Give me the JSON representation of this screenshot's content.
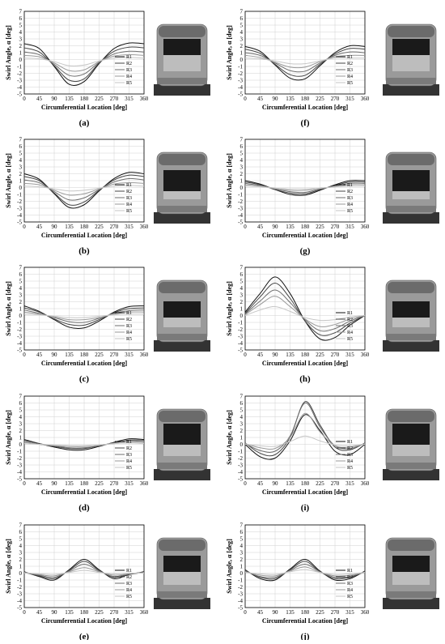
{
  "figure": {
    "y_axis_label": "Swirl Angle, α [deg]",
    "x_axis_label": "Circumferential Location [deg]",
    "legend_labels": [
      "R1",
      "R2",
      "R3",
      "R4",
      "R5"
    ],
    "series_colors": [
      "#111111",
      "#444444",
      "#6e6e6e",
      "#9a9a9a",
      "#c6c6c6"
    ]
  },
  "chart_data": [
    {
      "type": "line",
      "panel_label": "(a)",
      "x": [
        0,
        45,
        90,
        135,
        180,
        225,
        270,
        315,
        360
      ],
      "xticks": [
        0,
        45,
        90,
        135,
        180,
        225,
        270,
        315,
        360
      ],
      "yticks": [
        -5,
        -4,
        -3,
        -2,
        -1,
        0,
        1,
        2,
        3,
        4,
        5,
        6,
        7
      ],
      "ylim": [
        -5,
        7
      ],
      "grid": true,
      "legend": "right",
      "series": [
        {
          "name": "R1",
          "values": [
            2.3,
            1.6,
            -1.0,
            -3.6,
            -3.2,
            -0.6,
            1.6,
            2.4,
            2.3
          ]
        },
        {
          "name": "R2",
          "values": [
            1.7,
            1.1,
            -0.9,
            -3.0,
            -2.8,
            -0.5,
            1.2,
            1.8,
            1.7
          ]
        },
        {
          "name": "R3",
          "values": [
            1.1,
            0.7,
            -0.7,
            -2.3,
            -2.1,
            -0.4,
            0.8,
            1.2,
            1.1
          ]
        },
        {
          "name": "R4",
          "values": [
            0.6,
            0.4,
            -0.5,
            -1.6,
            -1.5,
            -0.3,
            0.5,
            0.7,
            0.6
          ]
        },
        {
          "name": "R5",
          "values": [
            0.2,
            0.1,
            -0.3,
            -0.9,
            -0.8,
            -0.2,
            0.2,
            0.3,
            0.2
          ]
        }
      ]
    },
    {
      "type": "line",
      "panel_label": "(f)",
      "x": [
        0,
        45,
        90,
        135,
        180,
        225,
        270,
        315,
        360
      ],
      "xticks": [
        0,
        45,
        90,
        135,
        180,
        225,
        270,
        315,
        360
      ],
      "yticks": [
        -5,
        -4,
        -3,
        -2,
        -1,
        0,
        1,
        2,
        3,
        4,
        5,
        6,
        7
      ],
      "ylim": [
        -5,
        7
      ],
      "grid": true,
      "legend": "right",
      "series": [
        {
          "name": "R1",
          "values": [
            1.9,
            1.2,
            -0.8,
            -2.7,
            -2.8,
            -0.9,
            1.0,
            2.0,
            1.9
          ]
        },
        {
          "name": "R2",
          "values": [
            1.5,
            0.9,
            -0.7,
            -2.2,
            -2.3,
            -0.7,
            0.8,
            1.6,
            1.5
          ]
        },
        {
          "name": "R3",
          "values": [
            1.0,
            0.6,
            -0.5,
            -1.6,
            -1.7,
            -0.5,
            0.6,
            1.1,
            1.0
          ]
        },
        {
          "name": "R4",
          "values": [
            0.6,
            0.3,
            -0.4,
            -1.1,
            -1.1,
            -0.3,
            0.4,
            0.6,
            0.6
          ]
        },
        {
          "name": "R5",
          "values": [
            0.2,
            0.1,
            -0.2,
            -0.6,
            -0.6,
            -0.2,
            0.2,
            0.2,
            0.2
          ]
        }
      ]
    },
    {
      "type": "line",
      "panel_label": "(b)",
      "x": [
        0,
        45,
        90,
        135,
        180,
        225,
        270,
        315,
        360
      ],
      "xticks": [
        0,
        45,
        90,
        135,
        180,
        225,
        270,
        315,
        360
      ],
      "yticks": [
        -5,
        -4,
        -3,
        -2,
        -1,
        0,
        1,
        2,
        3,
        4,
        5,
        6,
        7
      ],
      "ylim": [
        -5,
        7
      ],
      "grid": true,
      "legend": "right",
      "series": [
        {
          "name": "R1",
          "values": [
            2.0,
            1.2,
            -0.9,
            -2.9,
            -2.5,
            -0.5,
            1.3,
            2.2,
            2.0
          ]
        },
        {
          "name": "R2",
          "values": [
            1.6,
            1.0,
            -0.8,
            -2.5,
            -2.1,
            -0.4,
            1.1,
            1.8,
            1.6
          ]
        },
        {
          "name": "R3",
          "values": [
            1.1,
            0.7,
            -0.6,
            -1.8,
            -1.5,
            -0.3,
            0.8,
            1.3,
            1.1
          ]
        },
        {
          "name": "R4",
          "values": [
            0.6,
            0.4,
            -0.4,
            -1.1,
            -0.9,
            -0.2,
            0.5,
            0.7,
            0.6
          ]
        },
        {
          "name": "R5",
          "values": [
            0.2,
            0.1,
            -0.2,
            -0.5,
            -0.4,
            -0.1,
            0.2,
            0.3,
            0.2
          ]
        }
      ]
    },
    {
      "type": "line",
      "panel_label": "(g)",
      "x": [
        0,
        45,
        90,
        135,
        180,
        225,
        270,
        315,
        360
      ],
      "xticks": [
        0,
        45,
        90,
        135,
        180,
        225,
        270,
        315,
        360
      ],
      "yticks": [
        -5,
        -4,
        -3,
        -2,
        -1,
        0,
        1,
        2,
        3,
        4,
        5,
        6,
        7
      ],
      "ylim": [
        -5,
        7
      ],
      "grid": true,
      "legend": "right",
      "series": [
        {
          "name": "R1",
          "values": [
            1.0,
            0.5,
            -0.3,
            -1.0,
            -1.1,
            -0.4,
            0.4,
            1.0,
            1.0
          ]
        },
        {
          "name": "R2",
          "values": [
            0.8,
            0.4,
            -0.3,
            -0.8,
            -0.9,
            -0.3,
            0.3,
            0.8,
            0.8
          ]
        },
        {
          "name": "R3",
          "values": [
            0.6,
            0.3,
            -0.2,
            -0.6,
            -0.7,
            -0.2,
            0.2,
            0.6,
            0.6
          ]
        },
        {
          "name": "R4",
          "values": [
            0.4,
            0.2,
            -0.1,
            -0.4,
            -0.4,
            -0.1,
            0.1,
            0.4,
            0.4
          ]
        },
        {
          "name": "R5",
          "values": [
            0.2,
            0.1,
            -0.1,
            -0.2,
            -0.2,
            -0.1,
            0.1,
            0.2,
            0.2
          ]
        }
      ]
    },
    {
      "type": "line",
      "panel_label": "(c)",
      "x": [
        0,
        45,
        90,
        135,
        180,
        225,
        270,
        315,
        360
      ],
      "xticks": [
        0,
        45,
        90,
        135,
        180,
        225,
        270,
        315,
        360
      ],
      "yticks": [
        -5,
        -4,
        -3,
        -2,
        -1,
        0,
        1,
        2,
        3,
        4,
        5,
        6,
        7
      ],
      "ylim": [
        -5,
        7
      ],
      "grid": true,
      "legend": "right",
      "series": [
        {
          "name": "R1",
          "values": [
            1.4,
            0.6,
            -0.6,
            -1.7,
            -1.8,
            -0.8,
            0.5,
            1.3,
            1.4
          ]
        },
        {
          "name": "R2",
          "values": [
            1.1,
            0.5,
            -0.5,
            -1.3,
            -1.4,
            -0.6,
            0.4,
            1.0,
            1.1
          ]
        },
        {
          "name": "R3",
          "values": [
            0.8,
            0.3,
            -0.3,
            -0.9,
            -1.0,
            -0.4,
            0.3,
            0.7,
            0.8
          ]
        },
        {
          "name": "R4",
          "values": [
            0.5,
            0.2,
            -0.2,
            -0.6,
            -0.6,
            -0.3,
            0.2,
            0.5,
            0.5
          ]
        },
        {
          "name": "R5",
          "values": [
            0.2,
            0.1,
            -0.1,
            -0.3,
            -0.3,
            -0.1,
            0.1,
            0.2,
            0.2
          ]
        }
      ]
    },
    {
      "type": "line",
      "panel_label": "(h)",
      "x": [
        0,
        45,
        90,
        135,
        180,
        225,
        270,
        315,
        360
      ],
      "xticks": [
        0,
        45,
        90,
        135,
        180,
        225,
        270,
        315,
        360
      ],
      "yticks": [
        -5,
        -4,
        -3,
        -2,
        -1,
        0,
        1,
        2,
        3,
        4,
        5,
        6,
        7
      ],
      "ylim": [
        -5,
        7
      ],
      "grid": true,
      "legend": "right",
      "series": [
        {
          "name": "R1",
          "values": [
            0.5,
            3.2,
            5.6,
            3.2,
            -0.8,
            -3.4,
            -3.2,
            -1.4,
            0.0
          ]
        },
        {
          "name": "R2",
          "values": [
            0.3,
            2.7,
            4.7,
            2.5,
            -0.8,
            -2.8,
            -2.5,
            -1.1,
            0.0
          ]
        },
        {
          "name": "R3",
          "values": [
            0.2,
            2.1,
            3.7,
            1.9,
            -0.6,
            -2.2,
            -1.9,
            -0.8,
            0.0
          ]
        },
        {
          "name": "R4",
          "values": [
            0.1,
            1.6,
            2.8,
            1.3,
            -0.5,
            -1.6,
            -1.3,
            -0.5,
            0.0
          ]
        },
        {
          "name": "R5",
          "values": [
            0.0,
            0.8,
            1.3,
            0.6,
            -0.3,
            -0.7,
            -0.6,
            -0.2,
            0.0
          ]
        }
      ]
    },
    {
      "type": "line",
      "panel_label": "(d)",
      "x": [
        0,
        45,
        90,
        135,
        180,
        225,
        270,
        315,
        360
      ],
      "xticks": [
        0,
        45,
        90,
        135,
        180,
        225,
        270,
        315,
        360
      ],
      "yticks": [
        -5,
        -4,
        -3,
        -2,
        -1,
        0,
        1,
        2,
        3,
        4,
        5,
        6,
        7
      ],
      "ylim": [
        -5,
        7
      ],
      "grid": true,
      "legend": "right",
      "series": [
        {
          "name": "R1",
          "values": [
            0.7,
            0.1,
            -0.4,
            -0.8,
            -0.8,
            -0.3,
            0.3,
            0.8,
            0.7
          ]
        },
        {
          "name": "R2",
          "values": [
            0.6,
            0.1,
            -0.3,
            -0.6,
            -0.6,
            -0.2,
            0.2,
            0.6,
            0.6
          ]
        },
        {
          "name": "R3",
          "values": [
            0.4,
            0.0,
            -0.2,
            -0.5,
            -0.5,
            -0.2,
            0.2,
            0.5,
            0.4
          ]
        },
        {
          "name": "R4",
          "values": [
            0.3,
            0.0,
            -0.2,
            -0.3,
            -0.3,
            -0.1,
            0.1,
            0.3,
            0.3
          ]
        },
        {
          "name": "R5",
          "values": [
            0.1,
            0.0,
            -0.1,
            -0.2,
            -0.2,
            -0.1,
            0.1,
            0.2,
            0.1
          ]
        }
      ]
    },
    {
      "type": "line",
      "panel_label": "(i)",
      "x": [
        0,
        45,
        90,
        135,
        180,
        225,
        270,
        315,
        360
      ],
      "xticks": [
        0,
        45,
        90,
        135,
        180,
        225,
        270,
        315,
        360
      ],
      "yticks": [
        -5,
        -4,
        -3,
        -2,
        -1,
        0,
        1,
        2,
        3,
        4,
        5,
        6,
        7
      ],
      "ylim": [
        -5,
        7
      ],
      "grid": true,
      "legend": "right",
      "series": [
        {
          "name": "R1",
          "values": [
            0.0,
            -1.8,
            -2.0,
            0.5,
            4.3,
            2.0,
            -1.0,
            -1.5,
            0.0
          ]
        },
        {
          "name": "R2",
          "values": [
            0.2,
            -1.3,
            -1.5,
            1.0,
            6.2,
            2.8,
            -0.4,
            -0.8,
            0.2
          ]
        },
        {
          "name": "R3",
          "values": [
            0.1,
            -0.9,
            -1.0,
            1.2,
            6.0,
            2.5,
            -0.2,
            -0.6,
            0.1
          ]
        },
        {
          "name": "R4",
          "values": [
            0.1,
            -0.5,
            -0.6,
            1.0,
            4.5,
            1.8,
            -0.2,
            -0.4,
            0.1
          ]
        },
        {
          "name": "R5",
          "values": [
            0.0,
            -0.2,
            -0.3,
            0.4,
            1.2,
            0.5,
            -0.1,
            -0.2,
            0.0
          ]
        }
      ]
    },
    {
      "type": "line",
      "panel_label": "(e)",
      "x": [
        0,
        45,
        90,
        135,
        180,
        225,
        270,
        315,
        360
      ],
      "xticks": [
        0,
        45,
        90,
        135,
        180,
        225,
        270,
        315,
        360
      ],
      "yticks": [
        -5,
        -4,
        -3,
        -2,
        -1,
        0,
        1,
        2,
        3,
        4,
        5,
        6,
        7
      ],
      "ylim": [
        -5,
        7
      ],
      "grid": true,
      "legend": "right",
      "series": [
        {
          "name": "R1",
          "values": [
            0.2,
            -0.5,
            -1.0,
            0.5,
            2.0,
            0.5,
            -0.8,
            -0.2,
            0.2
          ]
        },
        {
          "name": "R2",
          "values": [
            0.1,
            -0.4,
            -0.8,
            0.4,
            1.7,
            0.4,
            -0.6,
            -0.2,
            0.1
          ]
        },
        {
          "name": "R3",
          "values": [
            0.1,
            -0.3,
            -0.6,
            0.3,
            1.3,
            0.3,
            -0.5,
            -0.1,
            0.1
          ]
        },
        {
          "name": "R4",
          "values": [
            0.1,
            -0.2,
            -0.4,
            0.2,
            0.8,
            0.2,
            -0.3,
            -0.1,
            0.1
          ]
        },
        {
          "name": "R5",
          "values": [
            0.0,
            -0.1,
            -0.2,
            0.1,
            0.4,
            0.1,
            -0.1,
            0.0,
            0.0
          ]
        }
      ]
    },
    {
      "type": "line",
      "panel_label": "(j)",
      "x": [
        0,
        45,
        90,
        135,
        180,
        225,
        270,
        315,
        360
      ],
      "xticks": [
        0,
        45,
        90,
        135,
        180,
        225,
        270,
        315,
        360
      ],
      "yticks": [
        -5,
        -4,
        -3,
        -2,
        -1,
        0,
        1,
        2,
        3,
        4,
        5,
        6,
        7
      ],
      "ylim": [
        -5,
        7
      ],
      "grid": true,
      "legend": "right",
      "series": [
        {
          "name": "R1",
          "values": [
            0.5,
            -0.8,
            -1.0,
            0.6,
            2.0,
            0.3,
            -1.0,
            -0.8,
            0.3
          ]
        },
        {
          "name": "R2",
          "values": [
            0.4,
            -0.6,
            -0.8,
            0.5,
            1.7,
            0.2,
            -0.8,
            -0.6,
            0.2
          ]
        },
        {
          "name": "R3",
          "values": [
            0.3,
            -0.5,
            -0.6,
            0.4,
            1.3,
            0.2,
            -0.6,
            -0.5,
            0.2
          ]
        },
        {
          "name": "R4",
          "values": [
            0.2,
            -0.3,
            -0.4,
            0.3,
            0.9,
            0.1,
            -0.4,
            -0.3,
            0.1
          ]
        },
        {
          "name": "R5",
          "values": [
            0.1,
            -0.1,
            -0.2,
            0.2,
            0.5,
            0.1,
            -0.2,
            -0.1,
            0.1
          ]
        }
      ]
    }
  ]
}
